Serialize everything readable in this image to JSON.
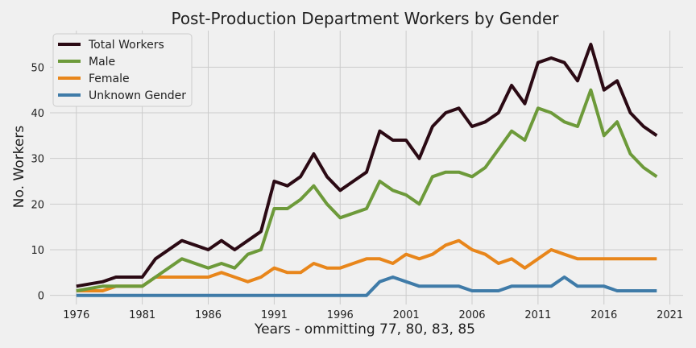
{
  "chart_data": {
    "type": "line",
    "title": "Post-Production Department Workers by Gender",
    "xlabel": "Years - ommitting 77, 80, 83, 85",
    "ylabel": "No. Workers",
    "xlim": [
      1974,
      2022
    ],
    "ylim": [
      -2,
      58
    ],
    "xticks": [
      1976,
      1981,
      1986,
      1991,
      1996,
      2001,
      2006,
      2011,
      2016,
      2021
    ],
    "yticks": [
      0,
      10,
      20,
      30,
      40,
      50
    ],
    "grid": true,
    "legend_position": "top-left",
    "x": [
      1976,
      1978,
      1979,
      1981,
      1982,
      1984,
      1986,
      1987,
      1988,
      1989,
      1990,
      1991,
      1992,
      1993,
      1994,
      1995,
      1996,
      1997,
      1998,
      1999,
      2000,
      2001,
      2002,
      2003,
      2004,
      2005,
      2006,
      2007,
      2008,
      2009,
      2010,
      2011,
      2012,
      2013,
      2014,
      2015,
      2016,
      2017,
      2018,
      2019,
      2020
    ],
    "series": [
      {
        "name": "Total Workers",
        "color": "#2b0a14",
        "values": [
          2,
          3,
          4,
          4,
          8,
          12,
          10,
          12,
          10,
          12,
          14,
          25,
          24,
          26,
          31,
          26,
          23,
          25,
          27,
          36,
          34,
          34,
          30,
          37,
          40,
          41,
          37,
          38,
          40,
          46,
          42,
          51,
          52,
          51,
          47,
          55,
          45,
          47,
          40,
          37,
          35
        ]
      },
      {
        "name": "Male",
        "color": "#6d9a3a",
        "values": [
          1,
          2,
          2,
          2,
          4,
          8,
          6,
          7,
          6,
          9,
          10,
          19,
          19,
          21,
          24,
          20,
          17,
          18,
          19,
          25,
          23,
          22,
          20,
          26,
          27,
          27,
          26,
          28,
          32,
          36,
          34,
          41,
          40,
          38,
          37,
          45,
          35,
          38,
          31,
          28,
          26
        ]
      },
      {
        "name": "Female",
        "color": "#e8861b",
        "values": [
          1,
          1,
          2,
          2,
          4,
          4,
          4,
          5,
          4,
          3,
          4,
          6,
          5,
          5,
          7,
          6,
          6,
          7,
          8,
          8,
          7,
          9,
          8,
          9,
          11,
          12,
          10,
          9,
          7,
          8,
          6,
          8,
          10,
          9,
          8,
          8,
          8,
          8,
          8,
          8,
          8
        ]
      },
      {
        "name": "Unknown Gender",
        "color": "#3f7ba8",
        "values": [
          0,
          0,
          0,
          0,
          0,
          0,
          0,
          0,
          0,
          0,
          0,
          0,
          0,
          0,
          0,
          0,
          0,
          0,
          0,
          3,
          4,
          3,
          2,
          2,
          2,
          2,
          1,
          1,
          1,
          2,
          2,
          2,
          2,
          4,
          2,
          2,
          2,
          1,
          1,
          1,
          1
        ]
      }
    ]
  }
}
